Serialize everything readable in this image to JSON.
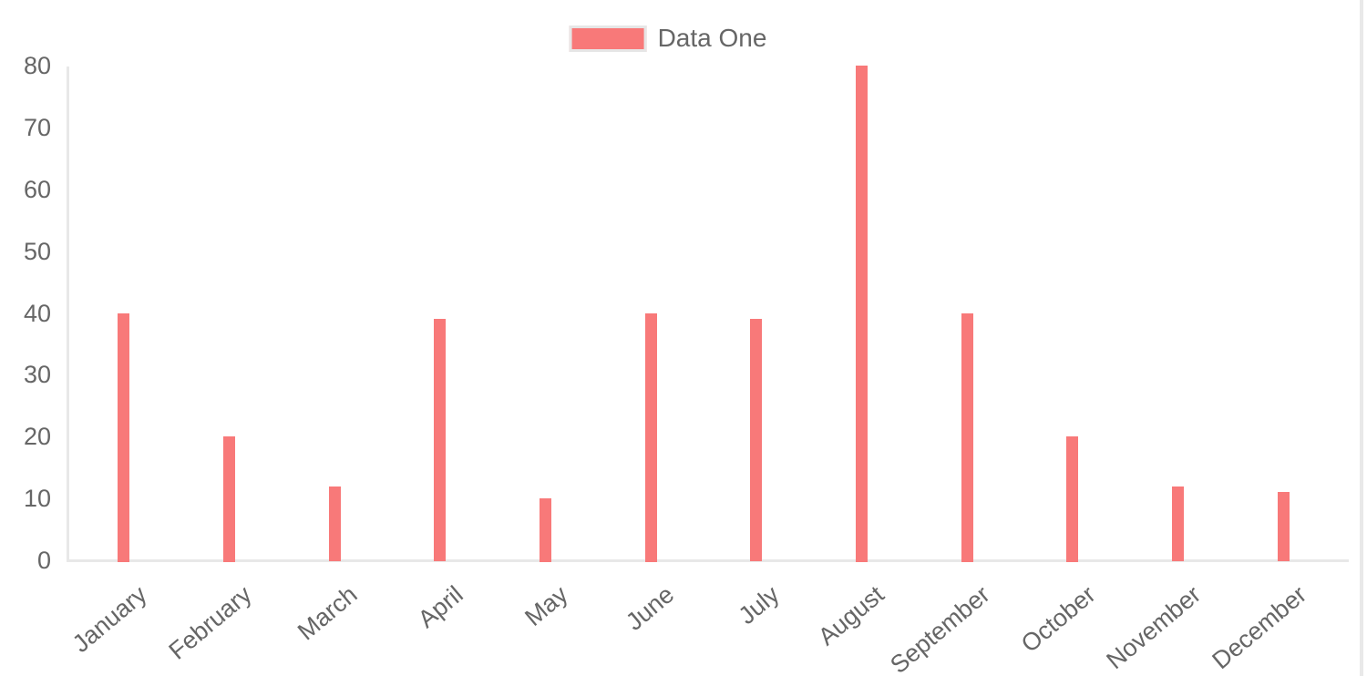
{
  "page": {
    "background_color": "#ffffff",
    "divider_color": "#e9e9e9"
  },
  "legend": {
    "items": [
      {
        "label": "Data One",
        "swatch_color": "#f87979",
        "swatch_border_color": "#e6e6e6"
      }
    ]
  },
  "chart_data": {
    "type": "bar",
    "title": "",
    "xlabel": "",
    "ylabel": "",
    "categories": [
      "January",
      "February",
      "March",
      "April",
      "May",
      "June",
      "July",
      "August",
      "September",
      "October",
      "November",
      "December"
    ],
    "series": [
      {
        "name": "Data One",
        "color": "#f87979",
        "values": [
          40,
          20,
          12,
          39,
          10,
          40,
          39,
          80,
          40,
          20,
          12,
          11
        ]
      }
    ],
    "ylim": [
      0,
      80
    ],
    "yticks": [
      0,
      10,
      20,
      30,
      40,
      50,
      60,
      70,
      80
    ],
    "grid": false,
    "legend_position": "top",
    "x_tick_rotation_deg": -40,
    "axis_line_color": "#e8e8e8",
    "tick_label_color": "#666666"
  }
}
